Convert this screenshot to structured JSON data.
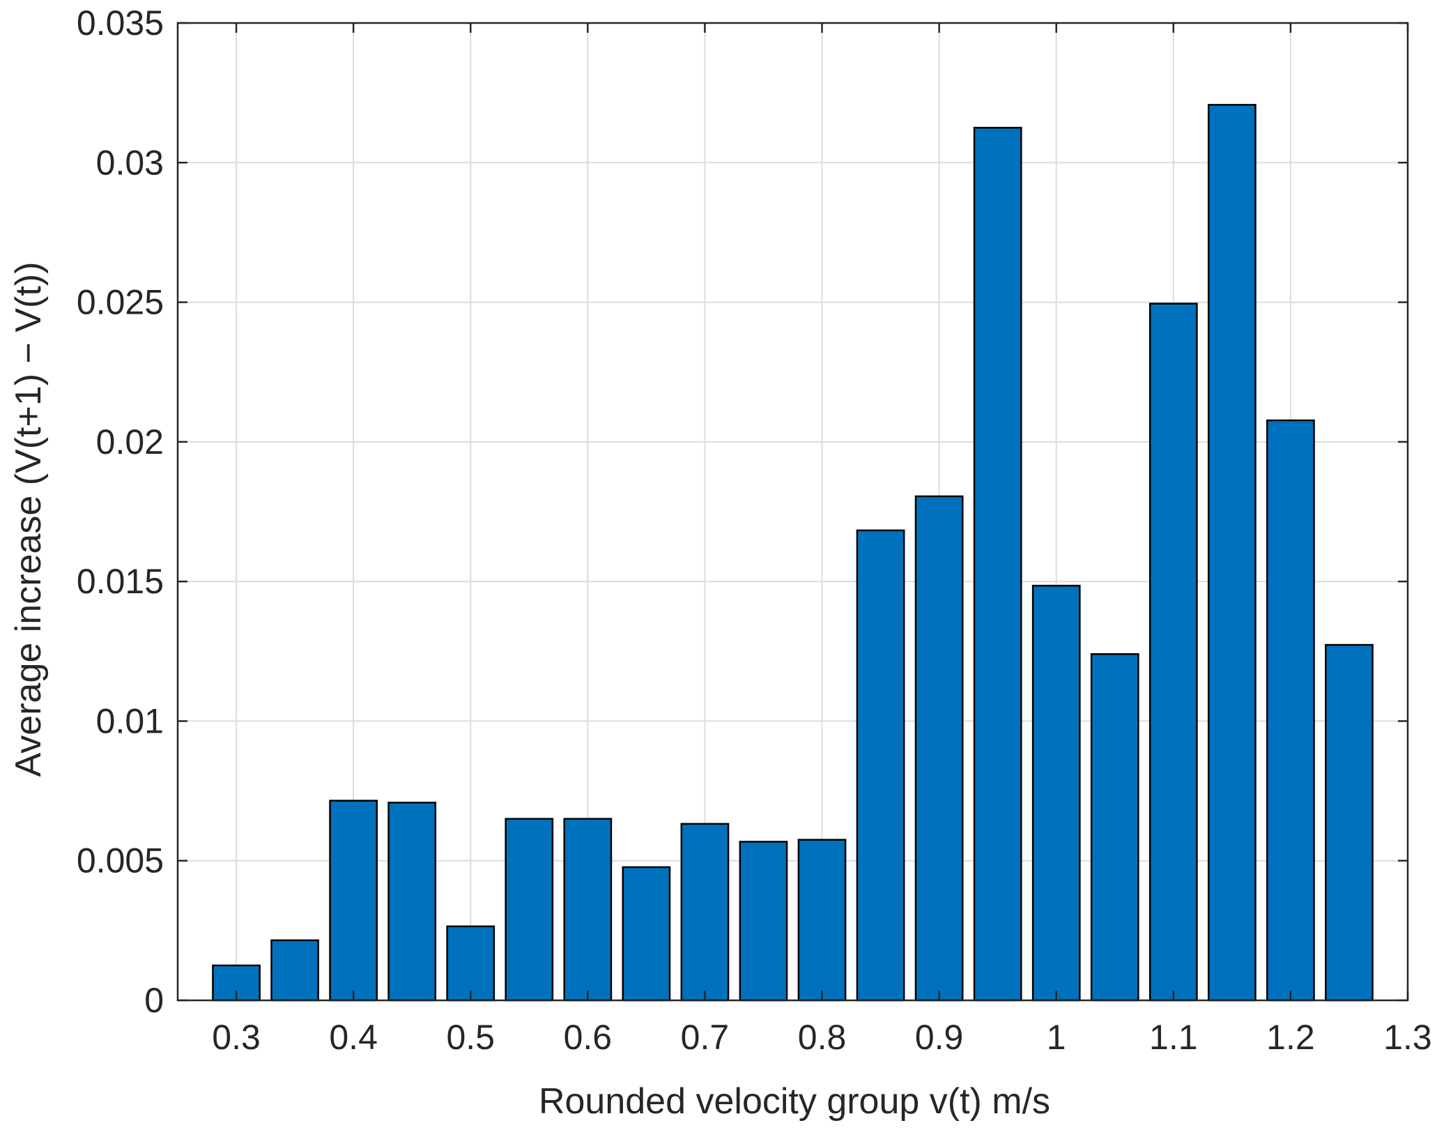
{
  "chart_data": {
    "type": "bar",
    "title": "",
    "xlabel": "Rounded velocity group v(t) m/s",
    "ylabel": "Average increase (V(t+1) − V(t))",
    "x": [
      0.3,
      0.35,
      0.4,
      0.45,
      0.5,
      0.55,
      0.6,
      0.65,
      0.7,
      0.75,
      0.8,
      0.85,
      0.9,
      0.95,
      1.0,
      1.05,
      1.1,
      1.15,
      1.2,
      1.25
    ],
    "values": [
      0.00125,
      0.00215,
      0.00715,
      0.00708,
      0.00265,
      0.0065,
      0.0065,
      0.00477,
      0.00632,
      0.00568,
      0.00575,
      0.01683,
      0.01805,
      0.03125,
      0.01485,
      0.0124,
      0.02495,
      0.03207,
      0.02077,
      0.01273
    ],
    "xlim": [
      0.25,
      1.3
    ],
    "ylim": [
      0,
      0.035
    ],
    "xticks": [
      "0.3",
      "0.4",
      "0.5",
      "0.6",
      "0.7",
      "0.8",
      "0.9",
      "1",
      "1.1",
      "1.2",
      "1.3"
    ],
    "yticks": [
      "0",
      "0.005",
      "0.01",
      "0.015",
      "0.02",
      "0.025",
      "0.03",
      "0.035"
    ],
    "grid": true,
    "colors": {
      "bar": "#0072BD",
      "bar_edge": "#000000",
      "grid": "#DCDCDC",
      "axis": "#262626"
    }
  }
}
